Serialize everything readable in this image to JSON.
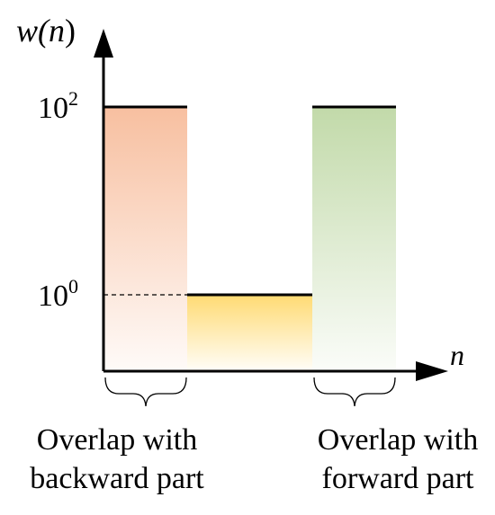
{
  "chart_data": {
    "type": "step",
    "scale": "log",
    "y_axis_label_base": "w(",
    "y_axis_label_var": "n",
    "y_axis_label_close": ")",
    "x_axis_label": "n",
    "y_ticks": [
      {
        "base": "10",
        "exp": "2",
        "value": 100
      },
      {
        "base": "10",
        "exp": "0",
        "value": 1
      }
    ],
    "segments": [
      {
        "name": "backward-overlap",
        "value": 100,
        "color": "#f6b48f"
      },
      {
        "name": "middle",
        "value": 1,
        "color": "#ffd45a"
      },
      {
        "name": "forward-overlap",
        "value": 100,
        "color": "#b7d39a"
      }
    ],
    "annotations": [
      {
        "line1": "Overlap with",
        "line2": "backward part"
      },
      {
        "line1": "Overlap with",
        "line2": "forward part"
      }
    ]
  },
  "colors": {
    "axis": "#000000",
    "backward": "#f6b48f",
    "middle": "#ffd45a",
    "forward": "#b7d39a"
  }
}
